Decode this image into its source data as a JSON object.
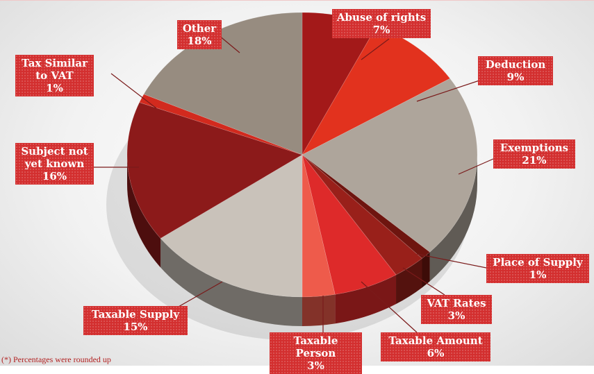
{
  "chart_data": {
    "type": "pie",
    "categories": [
      "Abuse of rights",
      "Deduction",
      "Exemptions",
      "Place of Supply",
      "VAT Rates",
      "Taxable Amount",
      "Taxable Person",
      "Taxable Supply",
      "Subject not yet known",
      "Tax Similar to VAT",
      "Other"
    ],
    "values": [
      7,
      9,
      21,
      1,
      3,
      6,
      3,
      15,
      16,
      1,
      18
    ],
    "value_labels": [
      "7%",
      "9%",
      "21%",
      "1%",
      "3%",
      "6%",
      "3%",
      "15%",
      "16%",
      "1%",
      "18%"
    ],
    "colors": [
      "#a31919",
      "#e2321e",
      "#aea59b",
      "#6e150f",
      "#99201a",
      "#de2a2a",
      "#ee5b4b",
      "#c9c2ba",
      "#8c1a1a",
      "#d22a1e",
      "#978c80"
    ],
    "note": "(*) Percentages were rounded up"
  }
}
